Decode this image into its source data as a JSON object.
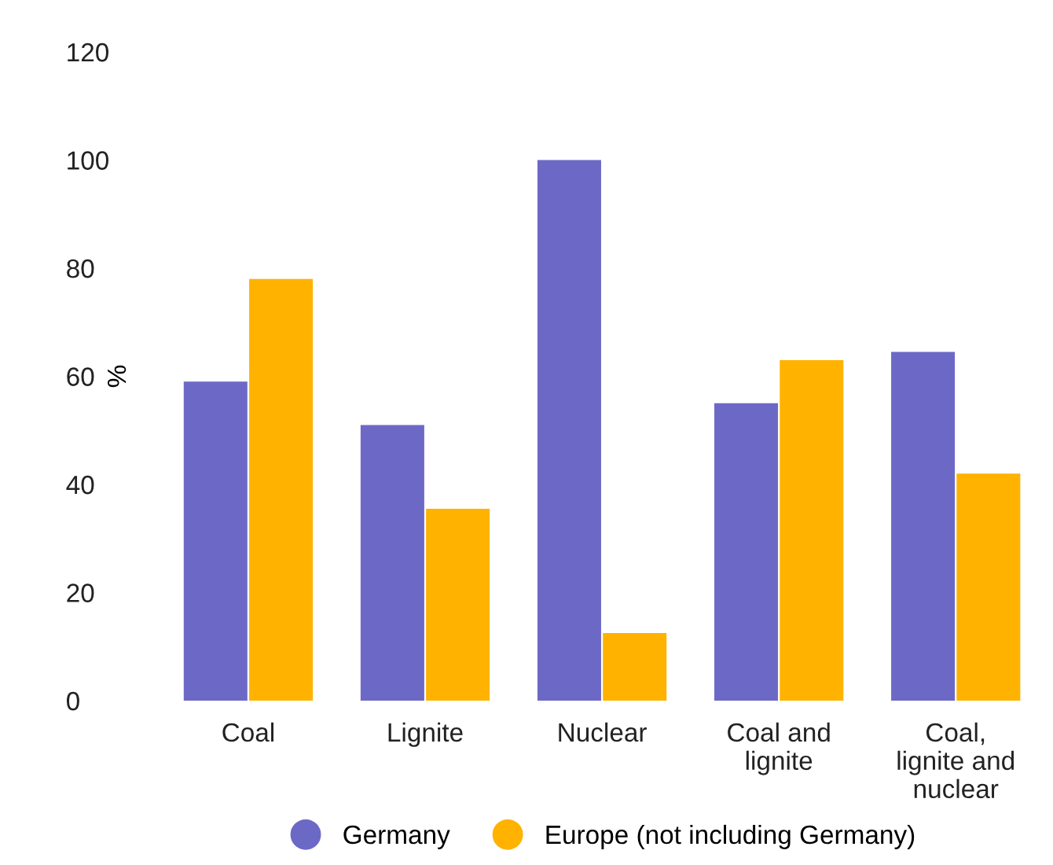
{
  "chart_data": {
    "type": "bar",
    "ylabel": "%",
    "categories": [
      "Coal",
      "Lignite",
      "Nuclear",
      "Coal and\nlignite",
      "Coal,\nlignite and\nnuclear"
    ],
    "series": [
      {
        "name": "Germany",
        "color": "#6c69c6",
        "values": [
          59,
          51,
          100,
          55,
          64.5
        ]
      },
      {
        "name": "Europe (not including Germany)",
        "color": "#ffb200",
        "values": [
          78,
          35.5,
          12.5,
          63,
          42
        ]
      }
    ],
    "ylim": [
      0,
      120
    ],
    "yticks": [
      0,
      20,
      40,
      60,
      80,
      100,
      120
    ],
    "grid": false,
    "legend": "bottom"
  }
}
